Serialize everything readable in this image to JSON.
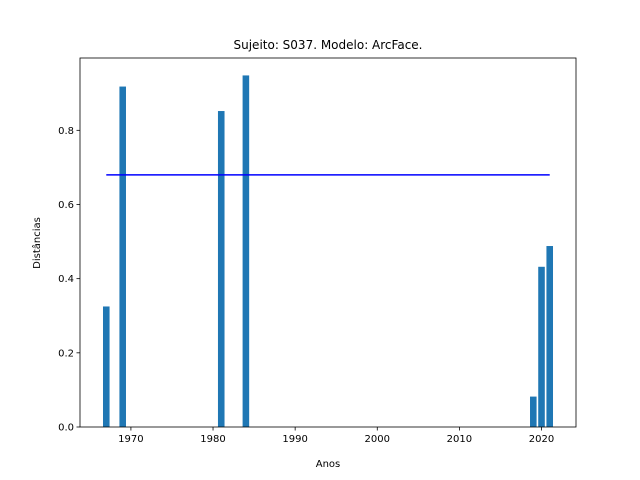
{
  "chart_data": {
    "type": "bar",
    "title": "Sujeito: S037. Modelo: ArcFace.",
    "xlabel": "Anos",
    "ylabel": "Distâncias",
    "xlim": [
      1963.8,
      2024.2
    ],
    "ylim": [
      0,
      0.995
    ],
    "xticks": [
      1970,
      1980,
      1990,
      2000,
      2010,
      2020
    ],
    "yticks": [
      0.0,
      0.2,
      0.4,
      0.6,
      0.8
    ],
    "ytick_labels": [
      "0.0",
      "0.2",
      "0.4",
      "0.6",
      "0.8"
    ],
    "grid": false,
    "bar_color": "#1f77b4",
    "bar_width": 0.8,
    "x": [
      1967,
      1969,
      1981,
      1984,
      2019,
      2020,
      2021
    ],
    "values": [
      0.325,
      0.918,
      0.852,
      0.948,
      0.082,
      0.432,
      0.488
    ],
    "threshold": {
      "value": 0.68,
      "x_start": 1967,
      "x_end": 2021,
      "color": "#0000ff"
    }
  }
}
